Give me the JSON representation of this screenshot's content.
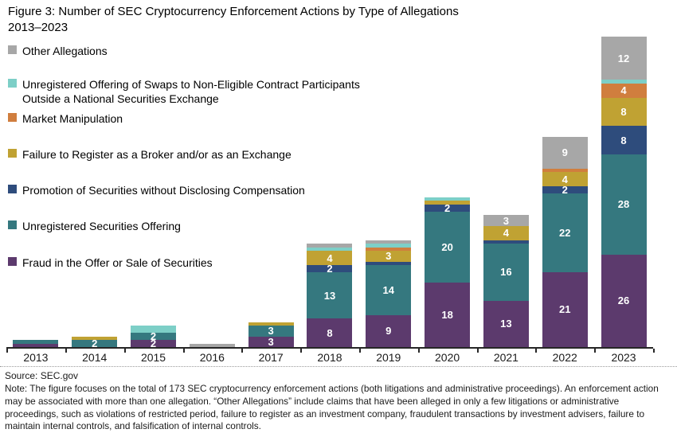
{
  "figure": {
    "title_line1": "Figure 3: Number of SEC Cryptocurrency Enforcement Actions by Type of Allegations",
    "title_line2": "2013–2023",
    "source": "Source: SEC.gov",
    "note": "Note: The figure focuses on the total of 173 SEC cryptocurrency enforcement actions (both litigations and administrative proceedings). An enforcement action may be associated with more than one allegation. “Other Allegations” include claims that have been alleged in only a few litigations or administrative proceedings, such as violations of restricted period, failure to register as an investment company, fraudulent transactions by investment advisers, failure to maintain internal controls, and falsification of internal controls."
  },
  "legend": {
    "items": [
      {
        "label": "Other Allegations",
        "color": "#a7a7a7"
      },
      {
        "label": "Unregistered Offering of Swaps to Non-Eligible Contract Participants Outside a National Securities Exchange",
        "color": "#7dcfc7"
      },
      {
        "label": "Market Manipulation",
        "color": "#d07e3e"
      },
      {
        "label": "Failure to Register as a Broker and/or as an Exchange",
        "color": "#c0a233"
      },
      {
        "label": "Promotion of Securities without Disclosing Compensation",
        "color": "#2e4c7c"
      },
      {
        "label": "Unregistered Securities Offering",
        "color": "#35787f"
      },
      {
        "label": "Fraud in the Offer or Sale of Securities",
        "color": "#5c3a6d"
      }
    ]
  },
  "chart_data": {
    "type": "bar",
    "stacked": true,
    "title": "Figure 3: Number of SEC Cryptocurrency Enforcement Actions by Type of Allegations 2013–2023",
    "xlabel": "",
    "ylabel": "",
    "ylim": [
      0,
      90
    ],
    "grid": false,
    "legend_position": "upper-left",
    "bar_value_label_color": "#ffffff",
    "categories": [
      "2013",
      "2014",
      "2015",
      "2016",
      "2017",
      "2018",
      "2019",
      "2020",
      "2021",
      "2022",
      "2023"
    ],
    "series": [
      {
        "name": "Fraud in the Offer or Sale of Securities",
        "color": "#5c3a6d",
        "values": [
          1,
          0,
          2,
          0,
          3,
          8,
          9,
          18,
          13,
          21,
          26
        ],
        "labels": [
          "",
          "",
          "2",
          "",
          "3",
          "8",
          "9",
          "18",
          "13",
          "21",
          "26"
        ]
      },
      {
        "name": "Unregistered Securities Offering",
        "color": "#35787f",
        "values": [
          1,
          2,
          2,
          0,
          3,
          13,
          14,
          20,
          16,
          22,
          28
        ],
        "labels": [
          "",
          "2",
          "2",
          "",
          "3",
          "13",
          "14",
          "20",
          "16",
          "22",
          "28"
        ]
      },
      {
        "name": "Promotion of Securities without Disclosing Compensation",
        "color": "#2e4c7c",
        "values": [
          0,
          0,
          0,
          0,
          0,
          2,
          1,
          2,
          1,
          2,
          8
        ],
        "labels": [
          "",
          "",
          "",
          "",
          "",
          "2",
          "",
          "2",
          "",
          "2",
          "8"
        ]
      },
      {
        "name": "Failure to Register as a Broker and/or as an Exchange",
        "color": "#c0a233",
        "values": [
          0,
          1,
          0,
          0,
          1,
          4,
          3,
          1,
          4,
          4,
          8
        ],
        "labels": [
          "",
          "",
          "",
          "",
          "",
          "4",
          "3",
          "",
          "4",
          "4",
          "8"
        ]
      },
      {
        "name": "Market Manipulation",
        "color": "#d07e3e",
        "values": [
          0,
          0,
          0,
          0,
          0,
          0,
          1,
          0,
          0,
          1,
          4
        ],
        "labels": [
          "",
          "",
          "",
          "",
          "",
          "",
          "",
          "",
          "",
          "",
          "4"
        ]
      },
      {
        "name": "Unregistered Offering of Swaps to Non-Eligible Contract Participants Outside a National Securities Exchange",
        "color": "#7dcfc7",
        "values": [
          0,
          0,
          2,
          0,
          0,
          1,
          1,
          1,
          0,
          0,
          1
        ],
        "labels": [
          "",
          "",
          "",
          "",
          "",
          "",
          "",
          "",
          "",
          "",
          ""
        ]
      },
      {
        "name": "Other Allegations",
        "color": "#a7a7a7",
        "values": [
          0,
          0,
          0,
          1,
          0,
          1,
          1,
          0,
          3,
          9,
          12
        ],
        "labels": [
          "",
          "",
          "",
          "",
          "",
          "",
          "",
          "",
          "3",
          "9",
          "12"
        ]
      }
    ]
  }
}
